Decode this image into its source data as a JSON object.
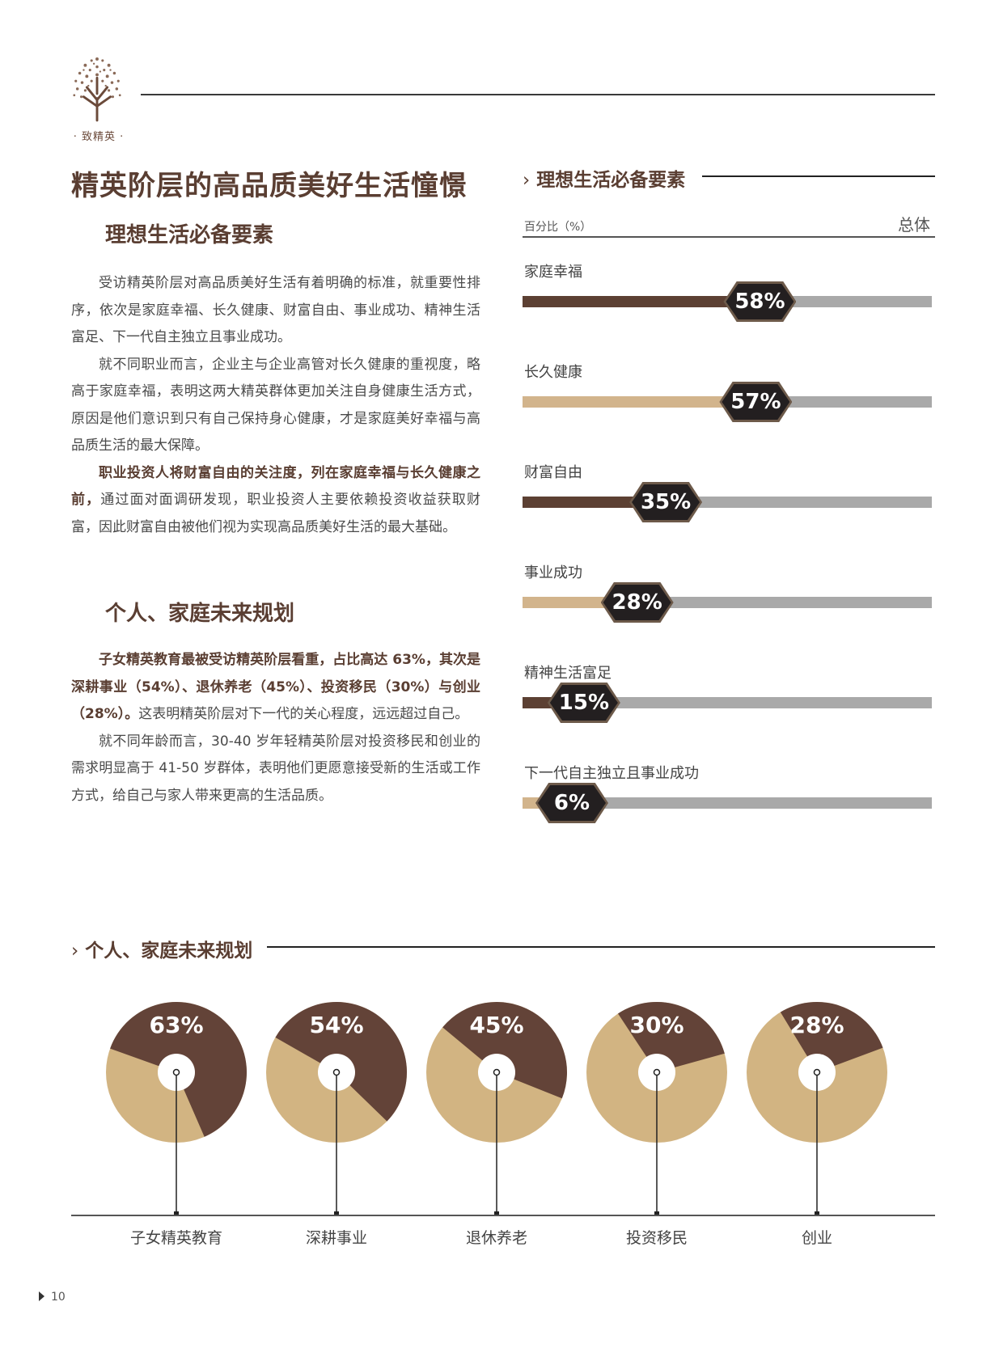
{
  "header": {
    "logo_caption": "· 致精英 ·"
  },
  "page_title": "精英阶层的高品质美好生活憧憬",
  "section1": {
    "title": "理想生活必备要素",
    "p1": "受访精英阶层对高品质美好生活有着明确的标准，就重要性排序，依次是家庭幸福、长久健康、财富自由、事业成功、精神生活富足、下一代自主独立且事业成功。",
    "p2": "就不同职业而言，企业主与企业高管对长久健康的重视度，略高于家庭幸福，表明这两大精英群体更加关注自身健康生活方式，原因是他们意识到只有自己保持身心健康，才是家庭美好幸福与高品质生活的最大保障。",
    "p3_bold": "职业投资人将财富自由的关注度，列在家庭幸福与长久健康之前，",
    "p3_rest": "通过面对面调研发现，职业投资人主要依赖投资收益获取财富，因此财富自由被他们视为实现高品质美好生活的最大基础。"
  },
  "section2": {
    "title": "个人、家庭未来规划",
    "p1_bold": "子女精英教育最被受访精英阶层看重，占比高达 63%，其次是深耕事业（54%）、退休养老（45%）、投资移民（30%）与创业（28%）。",
    "p1_rest": "这表明精英阶层对下一代的关心程度，远远超过自己。",
    "p2": "就不同年龄而言，30-40 岁年轻精英阶层对投资移民和创业的需求明显高于 41-50 岁群体，表明他们更愿意接受新的生活或工作方式，给自己与家人带来更高的生活品质。"
  },
  "bar_section": {
    "chevron": "›",
    "title": "理想生活必备要素",
    "unit_label": "百分比（%）",
    "overall_label": "总体"
  },
  "pie_section": {
    "chevron": "›",
    "title": "个人、家庭未来规划"
  },
  "chart_data": [
    {
      "type": "bar",
      "orientation": "horizontal",
      "categories": [
        "家庭幸福",
        "长久健康",
        "财富自由",
        "事业成功",
        "精神生活富足",
        "下一代自主独立且事业成功"
      ],
      "values": [
        58,
        57,
        35,
        28,
        15,
        6
      ],
      "value_labels": [
        "58%",
        "57%",
        "35%",
        "28%",
        "15%",
        "6%"
      ],
      "ylim": [
        0,
        100
      ],
      "colors": [
        "#5c4033",
        "#d2b48c",
        "#5c4033",
        "#d2b48c",
        "#5c4033",
        "#d2b48c"
      ],
      "track_color": "#a9a9a9"
    },
    {
      "type": "pie",
      "categories": [
        "子女精英教育",
        "深耕事业",
        "退休养老",
        "投资移民",
        "创业"
      ],
      "values": [
        63,
        54,
        45,
        30,
        28
      ],
      "value_labels": [
        "63%",
        "54%",
        "45%",
        "30%",
        "28%"
      ],
      "colors": {
        "share": "#634338",
        "rest": "#d2b482"
      }
    }
  ],
  "page_number": "10"
}
